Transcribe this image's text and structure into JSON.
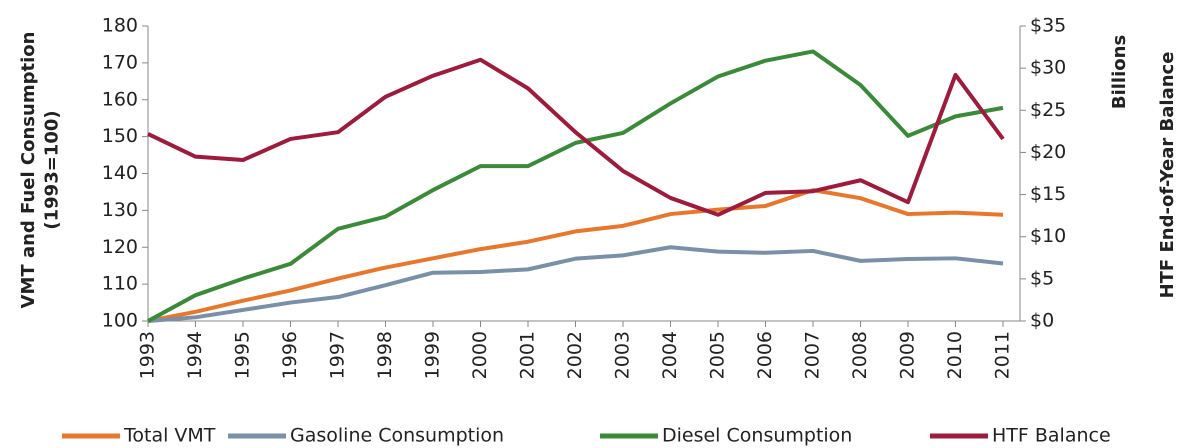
{
  "chart_data": {
    "type": "line",
    "y_label": "VMT and Fuel Consumption (1993=100)",
    "y2_label": "HTF End-of-Year Balance",
    "y2_unit_label": "Billions",
    "categories": [
      "1993",
      "1994",
      "1995",
      "1996",
      "1997",
      "1998",
      "1999",
      "2000",
      "2001",
      "2002",
      "2003",
      "2004",
      "2005",
      "2006",
      "2007",
      "2008",
      "2009",
      "2010",
      "2011"
    ],
    "ylim": [
      100,
      180
    ],
    "yticks": [
      100,
      110,
      120,
      130,
      140,
      150,
      160,
      170,
      180
    ],
    "y2lim": [
      0,
      35
    ],
    "y2ticks": [
      {
        "value": 0,
        "label": "$0"
      },
      {
        "value": 5,
        "label": "$5"
      },
      {
        "value": 10,
        "label": "$10"
      },
      {
        "value": 15,
        "label": "$15"
      },
      {
        "value": 20,
        "label": "$20"
      },
      {
        "value": 25,
        "label": "$25"
      },
      {
        "value": 30,
        "label": "$30"
      },
      {
        "value": 35,
        "label": "$35"
      }
    ],
    "legend": "bottom",
    "series": [
      {
        "name": "Total VMT",
        "color": "#e8772e",
        "values": [
          100,
          102.5,
          105.5,
          108.3,
          111.5,
          114.5,
          117,
          119.5,
          121.5,
          124.3,
          125.8,
          129,
          130.2,
          131.2,
          135.5,
          133.3,
          129,
          129.4,
          128.8
        ]
      },
      {
        "name": "Gasoline Consumption",
        "color": "#7a8fa8",
        "values": [
          100,
          101,
          103,
          105,
          106.5,
          109.7,
          113.1,
          113.3,
          114,
          116.9,
          117.8,
          120,
          118.8,
          118.5,
          119,
          116.3,
          116.8,
          117,
          115.6
        ]
      },
      {
        "name": "Diesel Consumption",
        "color": "#3a8a3a",
        "values": [
          100,
          107,
          111.5,
          115.5,
          125,
          128.3,
          135.5,
          142,
          142,
          148.3,
          151,
          159,
          166.3,
          170.6,
          173.1,
          164,
          150.2,
          155.5,
          157.8
        ]
      },
      {
        "name": "HTF Balance",
        "color": "#9b1c3c",
        "axis": "y2",
        "values": [
          22.2,
          19.5,
          19.1,
          21.6,
          22.4,
          26.6,
          29.1,
          31.0,
          27.6,
          22.4,
          17.8,
          14.6,
          12.6,
          15.2,
          15.4,
          16.7,
          14.1,
          29.2,
          21.6
        ]
      }
    ]
  }
}
